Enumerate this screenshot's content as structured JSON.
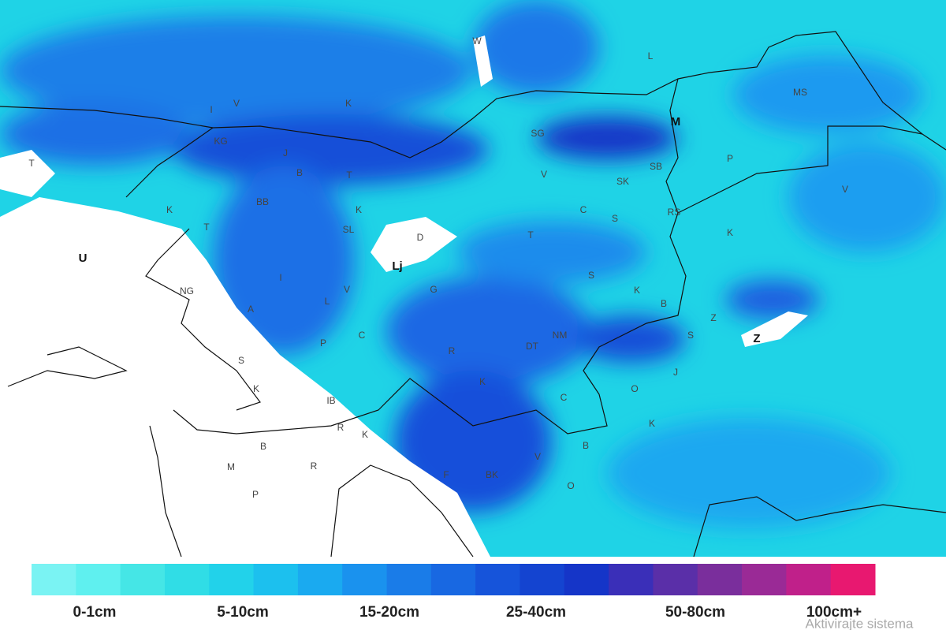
{
  "map": {
    "labels": [
      "W",
      "L",
      "MS",
      "I",
      "V",
      "K",
      "M",
      "SG",
      "KG",
      "J",
      "T",
      "B",
      "T",
      "V",
      "SB",
      "SK",
      "P",
      "V",
      "K",
      "BB",
      "K",
      "C",
      "S",
      "RS",
      "T",
      "SL",
      "D",
      "T",
      "K",
      "U",
      "Lj",
      "I",
      "S",
      "NG",
      "V",
      "G",
      "K",
      "L",
      "A",
      "B",
      "Z",
      "S",
      "C",
      "NM",
      "Z",
      "P",
      "DT",
      "R",
      "J",
      "S",
      "K",
      "K",
      "O",
      "IB",
      "C",
      "R",
      "K",
      "K",
      "B",
      "B",
      "V",
      "M",
      "R",
      "F",
      "BK",
      "P",
      "O"
    ]
  },
  "legend": {
    "labels": [
      "0-1cm",
      "5-10cm",
      "15-20cm",
      "25-40cm",
      "50-80cm",
      "100cm+"
    ]
  },
  "watermark": "Aktivirajte sistema"
}
